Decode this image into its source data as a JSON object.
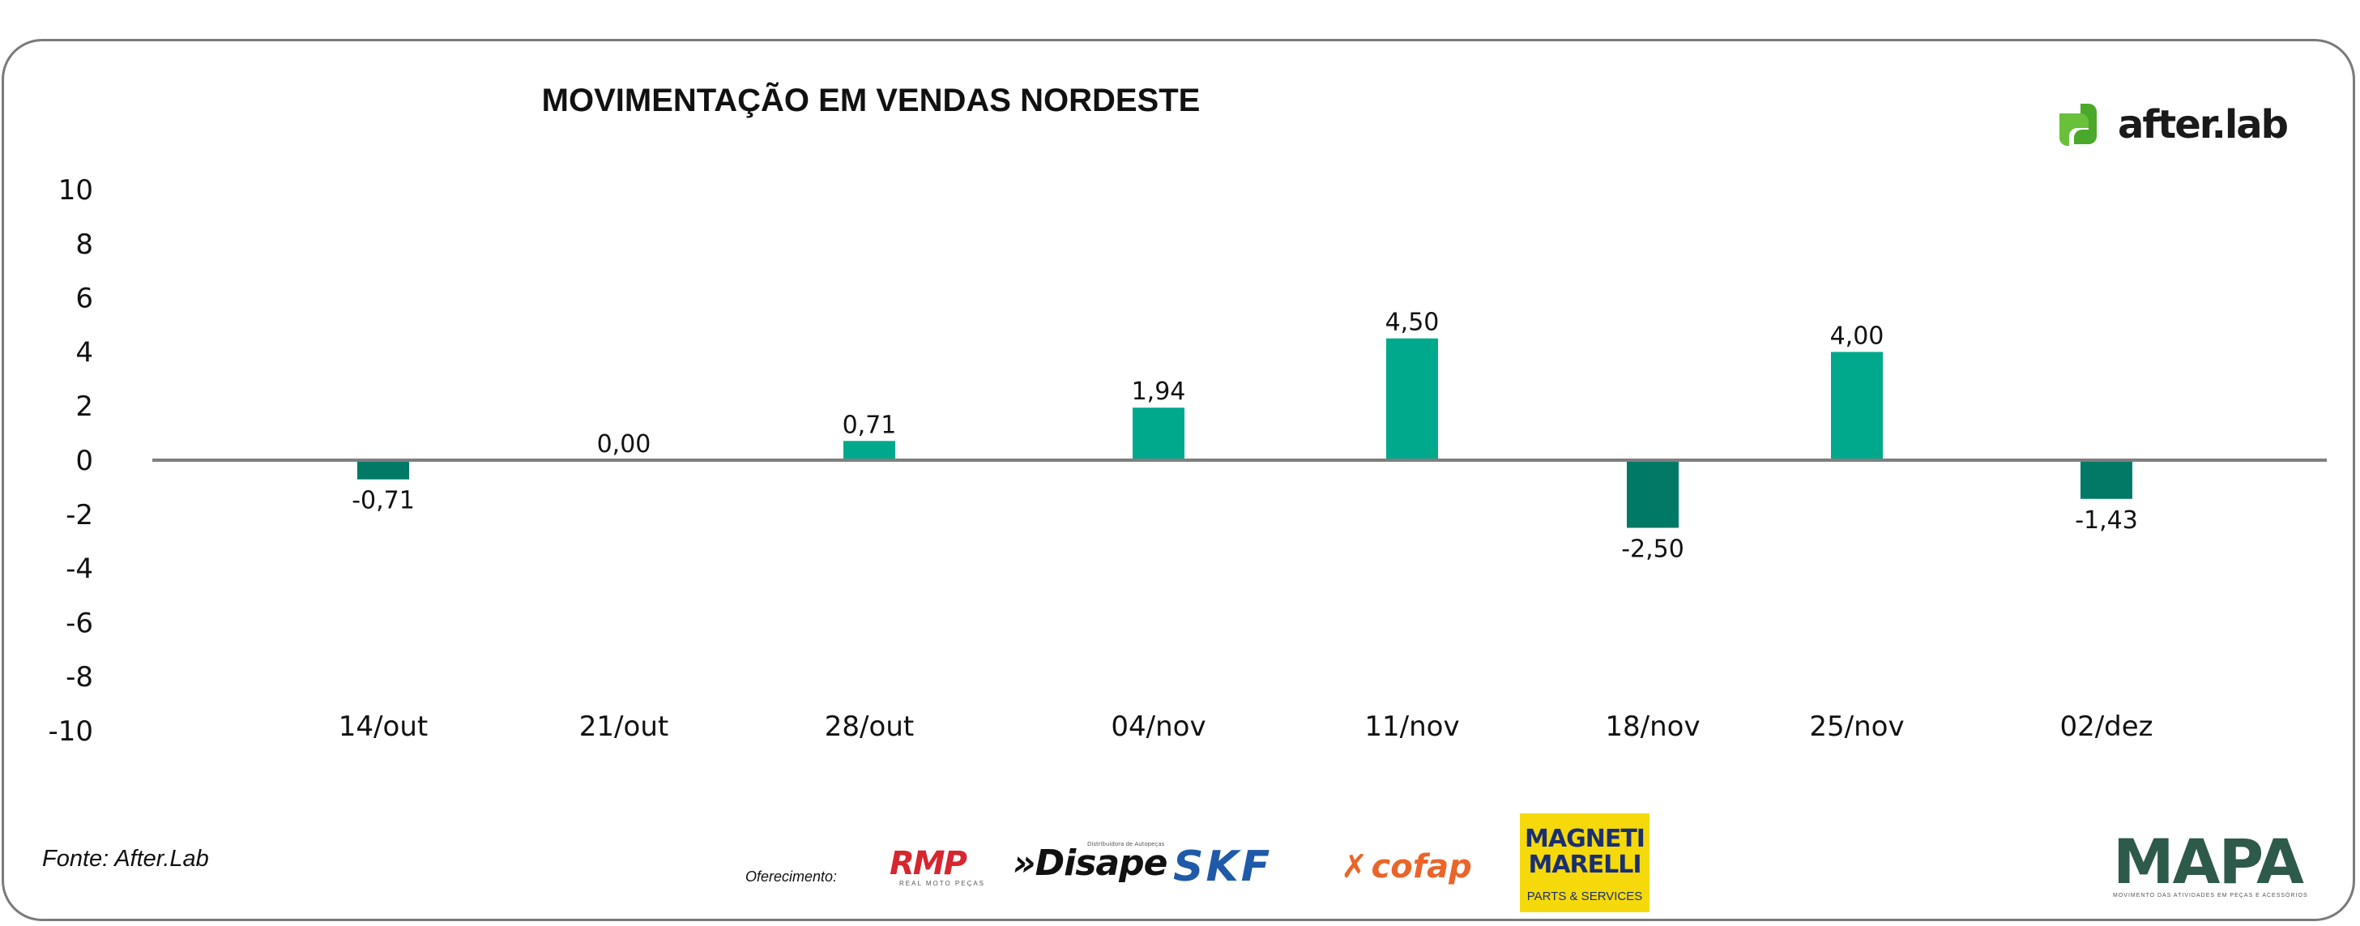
{
  "title": "MOVIMENTAÇÃO EM VENDAS NORDESTE",
  "brand": {
    "name": "after.lab",
    "color": "#6abf3b"
  },
  "source": "Fonte: After.Lab",
  "offer_label": "Oferecimento:",
  "sponsors": {
    "rmp": {
      "name": "RMP",
      "tagline": "REAL MOTO PEÇAS"
    },
    "disape": {
      "name": "»Disape",
      "tagline": "Distribuidora de Autopeças"
    },
    "skf": {
      "name": "SKF"
    },
    "cofap": {
      "name": "cofap"
    },
    "magneti": {
      "name": "MAGNETI MARELLI",
      "tagline": "PARTS & SERVICES"
    }
  },
  "mapa": {
    "name": "MAPA",
    "tagline": "MOVIMENTO DAS ATIVIDADES EM PEÇAS E ACESSÓRIOS"
  },
  "chart_data": {
    "type": "bar",
    "title": "MOVIMENTAÇÃO EM VENDAS NORDESTE",
    "categories": [
      "14/out",
      "21/out",
      "28/out",
      "04/nov",
      "11/nov",
      "18/nov",
      "25/nov",
      "02/dez"
    ],
    "values": [
      -0.71,
      0.0,
      0.71,
      1.94,
      4.5,
      -2.5,
      4.0,
      -1.43
    ],
    "data_labels": [
      "-0,71",
      "0,00",
      "0,71",
      "1,94",
      "4,50",
      "-2,50",
      "4,00",
      "-1,43"
    ],
    "ylim": [
      -10,
      10
    ],
    "yticks": [
      "10",
      "8",
      "6",
      "4",
      "2",
      "0",
      "-2",
      "-4",
      "-6",
      "-8",
      "-10"
    ],
    "xlabel": "",
    "ylabel": "",
    "grid": false,
    "colors": {
      "positive": "#00a98c",
      "negative": "#007a66",
      "axis": "#7f7f7f"
    }
  }
}
